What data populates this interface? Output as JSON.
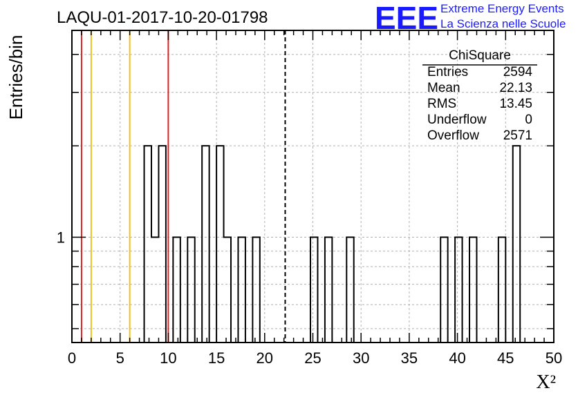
{
  "header": {
    "run_title": "LAQU-01-2017-10-20-01798",
    "logo_text": "EEE",
    "org_line1": "Extreme Energy Events",
    "org_line2": "La Scienza nelle Scuole",
    "logo_color": "#1a1aff"
  },
  "stats_box": {
    "title": "ChiSquare",
    "rows": [
      {
        "label": "Entries",
        "value": "2594"
      },
      {
        "label": "Mean",
        "value": "22.13"
      },
      {
        "label": "RMS",
        "value": "13.45"
      },
      {
        "label": "Underflow",
        "value": "0"
      },
      {
        "label": "Overflow",
        "value": "2571"
      }
    ]
  },
  "chart_data": {
    "type": "histogram",
    "title": "LAQU-01-2017-10-20-01798",
    "xlabel": "X²",
    "ylabel": "Entries/bin",
    "xlim": [
      0,
      50
    ],
    "ylim": [
      0.45,
      4.8
    ],
    "y_scale": "log",
    "grid": true,
    "grid_style": "dashed",
    "xticks": [
      "0",
      "5",
      "10",
      "15",
      "20",
      "25",
      "30",
      "35",
      "40",
      "45",
      "50"
    ],
    "yticks": [
      "1"
    ],
    "bin_width": 0.75,
    "bins": [
      {
        "x": 7.5,
        "count": 2
      },
      {
        "x": 8.25,
        "count": 1
      },
      {
        "x": 9.0,
        "count": 2
      },
      {
        "x": 9.75,
        "count": 0
      },
      {
        "x": 10.5,
        "count": 1
      },
      {
        "x": 11.25,
        "count": 0
      },
      {
        "x": 12.0,
        "count": 1
      },
      {
        "x": 13.5,
        "count": 2
      },
      {
        "x": 15.0,
        "count": 2
      },
      {
        "x": 15.75,
        "count": 1
      },
      {
        "x": 17.25,
        "count": 1
      },
      {
        "x": 18.0,
        "count": 0
      },
      {
        "x": 18.75,
        "count": 1
      },
      {
        "x": 24.75,
        "count": 1
      },
      {
        "x": 26.25,
        "count": 1
      },
      {
        "x": 28.5,
        "count": 1
      },
      {
        "x": 38.25,
        "count": 1
      },
      {
        "x": 39.75,
        "count": 1
      },
      {
        "x": 41.25,
        "count": 1
      },
      {
        "x": 44.25,
        "count": 1
      },
      {
        "x": 45.75,
        "count": 2
      }
    ],
    "vlines": [
      {
        "x": 1.0,
        "color": "#dd2222",
        "style": "solid"
      },
      {
        "x": 2.0,
        "color": "#f0c020",
        "style": "solid"
      },
      {
        "x": 6.0,
        "color": "#f0c020",
        "style": "solid"
      },
      {
        "x": 10.0,
        "color": "#dd2222",
        "style": "solid"
      },
      {
        "x": 22.13,
        "color": "#000000",
        "style": "dashed"
      }
    ]
  }
}
